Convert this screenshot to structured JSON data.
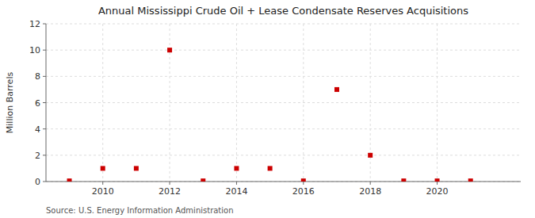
{
  "chart_data": {
    "type": "scatter",
    "title": "Annual Mississippi Crude Oil + Lease Condensate Reserves Acquisitions",
    "y_label": "Million Barrels",
    "source": "Source: U.S. Energy Information Administration",
    "x": [
      2009,
      2010,
      2011,
      2012,
      2013,
      2014,
      2015,
      2016,
      2017,
      2018,
      2019,
      2020,
      2021
    ],
    "values": [
      0.05,
      1.0,
      1.0,
      10.0,
      0.05,
      1.0,
      1.0,
      0.05,
      7.0,
      2.0,
      0.05,
      0.05,
      0.05
    ],
    "color": "#cc0000",
    "marker": "square",
    "xlim": [
      2008.3,
      2022.5
    ],
    "ylim": [
      0,
      12
    ],
    "xticks": [
      2010,
      2012,
      2014,
      2016,
      2018,
      2020
    ],
    "yticks": [
      0,
      2,
      4,
      6,
      8,
      10,
      12
    ],
    "grid": true
  }
}
